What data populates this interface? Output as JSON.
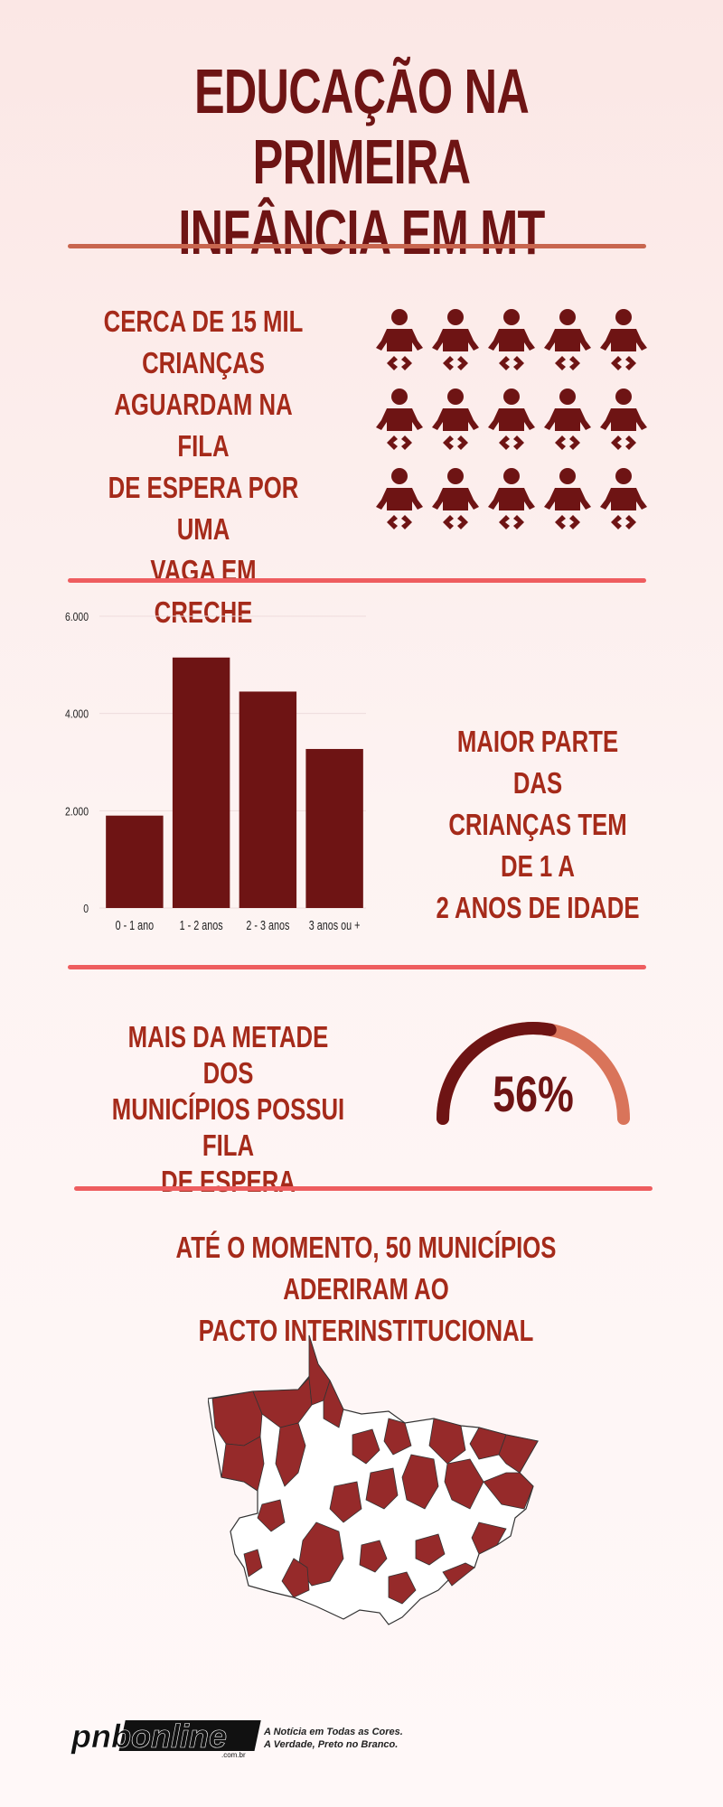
{
  "title": {
    "line1": "EDUCAÇÃO NA PRIMEIRA",
    "line2": "INFÂNCIA EM MT"
  },
  "colors": {
    "dark_red": "#6e1414",
    "text_red": "#a52a1a",
    "divider_brown": "#c8664f",
    "divider_coral": "#ee5d5f",
    "gauge_light": "#d9745a"
  },
  "waiting": {
    "lines": [
      "CERCA DE 15 MIL",
      "CRIANÇAS",
      "AGUARDAM NA FILA",
      "DE ESPERA POR UMA",
      "VAGA EM CRECHE"
    ],
    "icon_count": 15,
    "icon_name": "baby-icon"
  },
  "chart_data": {
    "type": "bar",
    "categories": [
      "0 - 1 ano",
      "1 - 2 anos",
      "2 - 3 anos",
      "3 anos ou +"
    ],
    "values": [
      1900,
      5150,
      4450,
      3270
    ],
    "ylim": [
      0,
      6000
    ],
    "yticks": [
      "0",
      "2.000",
      "4.000",
      "6.000"
    ],
    "ytick_values": [
      0,
      2000,
      4000,
      6000
    ],
    "grid": true,
    "color": "#6e1414"
  },
  "age": {
    "lines": [
      "MAIOR PARTE DAS",
      "CRIANÇAS TEM DE 1 A",
      "2 ANOS DE IDADE"
    ]
  },
  "half": {
    "lines": [
      "MAIS DA METADE DOS",
      "MUNICÍPIOS POSSUI FILA",
      "DE ESPERA"
    ],
    "percent_label": "56%",
    "percent_value": 0.56
  },
  "pact": {
    "lines": [
      "ATÉ O MOMENTO, 50 MUNICÍPIOS ADERIRAM AO",
      "PACTO INTERINSTITUCIONAL"
    ]
  },
  "footer": {
    "logo_text": "pnbonline",
    "logo_sub": ".com.br",
    "tagline1": "A Notícia em Todas as Cores.",
    "tagline2": "A Verdade, Preto no Branco."
  }
}
